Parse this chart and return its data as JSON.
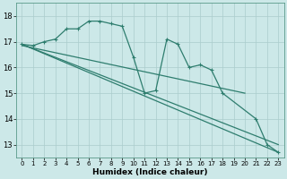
{
  "title": "",
  "xlabel": "Humidex (Indice chaleur)",
  "ylabel": "",
  "bg_color": "#cce8e8",
  "grid_color": "#aacccc",
  "line_color": "#2e7d6e",
  "xlim": [
    -0.5,
    23.5
  ],
  "ylim": [
    12.5,
    18.5
  ],
  "yticks": [
    13,
    14,
    15,
    16,
    17,
    18
  ],
  "xticks": [
    0,
    1,
    2,
    3,
    4,
    5,
    6,
    7,
    8,
    9,
    10,
    11,
    12,
    13,
    14,
    15,
    16,
    17,
    18,
    19,
    20,
    21,
    22,
    23
  ],
  "series": [
    {
      "x": [
        0,
        1,
        2,
        3,
        4,
        5,
        6,
        7,
        8,
        9,
        10,
        11,
        12,
        13,
        14,
        15,
        16,
        17,
        18,
        21,
        22,
        23
      ],
      "y": [
        16.9,
        16.85,
        17.0,
        17.1,
        17.5,
        17.5,
        17.8,
        17.8,
        17.7,
        17.6,
        16.4,
        15.0,
        15.1,
        17.1,
        16.9,
        16.0,
        16.1,
        15.9,
        15.0,
        14.0,
        13.0,
        12.7
      ],
      "marker": true
    },
    {
      "x": [
        0,
        23
      ],
      "y": [
        16.9,
        12.7
      ],
      "marker": false
    },
    {
      "x": [
        0,
        23
      ],
      "y": [
        16.9,
        13.0
      ],
      "marker": false
    },
    {
      "x": [
        0,
        20
      ],
      "y": [
        16.85,
        15.0
      ],
      "marker": false
    }
  ]
}
